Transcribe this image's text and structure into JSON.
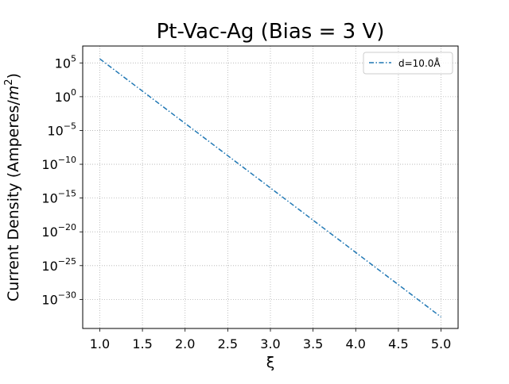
{
  "chart_data": {
    "type": "line",
    "title": "Pt-Vac-Ag (Bias = 3 V)",
    "xlabel": "ξ",
    "ylabel_parts": {
      "prefix": "Current Density (Amperes/",
      "base": "m",
      "exp": "2",
      "suffix": ")"
    },
    "xlim": [
      0.8,
      5.2
    ],
    "ylim_log10": [
      -34.3,
      7.5
    ],
    "y_scale": "log",
    "grid": true,
    "legend_position": "upper right",
    "x_ticks": [
      1.0,
      1.5,
      2.0,
      2.5,
      3.0,
      3.5,
      4.0,
      4.5,
      5.0
    ],
    "x_tick_labels": [
      "1.0",
      "1.5",
      "2.0",
      "2.5",
      "3.0",
      "3.5",
      "4.0",
      "4.5",
      "5.0"
    ],
    "y_ticks_log10": [
      5,
      0,
      -5,
      -10,
      -15,
      -20,
      -25,
      -30
    ],
    "y_tick_labels": [
      {
        "base": "10",
        "exp": "5"
      },
      {
        "base": "10",
        "exp": "0"
      },
      {
        "base": "10",
        "exp": "−5"
      },
      {
        "base": "10",
        "exp": "−10"
      },
      {
        "base": "10",
        "exp": "−15"
      },
      {
        "base": "10",
        "exp": "−20"
      },
      {
        "base": "10",
        "exp": "−25"
      },
      {
        "base": "10",
        "exp": "−30"
      }
    ],
    "series": [
      {
        "name": "d=10.0Å",
        "color": "#1f77b4",
        "line_style": "dash-dot",
        "x": [
          1.0,
          5.0
        ],
        "y_log10": [
          5.6,
          -32.6
        ]
      }
    ]
  }
}
